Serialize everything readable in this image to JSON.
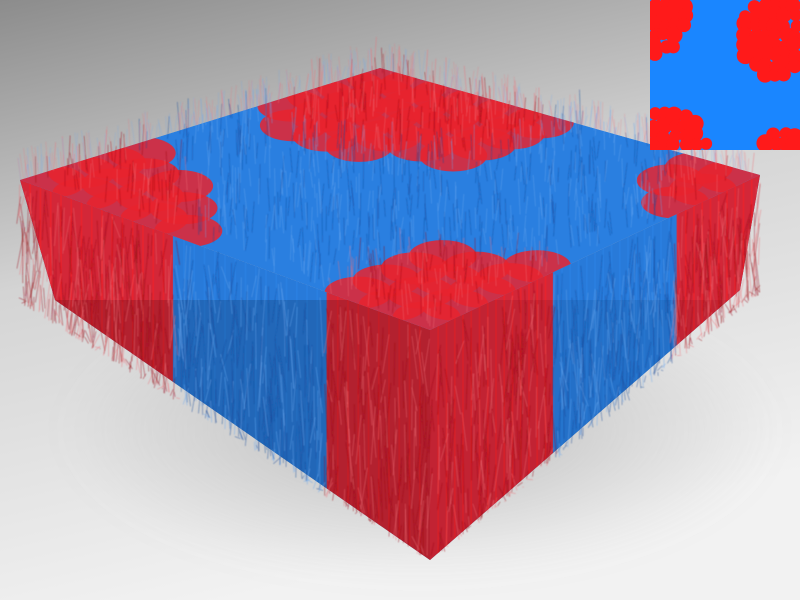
{
  "scene": {
    "background_top": "#8c8c8c",
    "background_mid": "#d4d4d4",
    "background_bottom": "#f2f2f2",
    "floor_shadow": "#9a9a9a"
  },
  "fur": {
    "primary_color": "#e8232e",
    "secondary_color": "#2a7fe0",
    "tip_red": "#f07078",
    "tip_blue": "#6aa8f0",
    "deep_red": "#9a1018",
    "deep_blue": "#1a4a9a"
  },
  "texture_inset": {
    "red": "#ff1a1a",
    "blue": "#1a86ff"
  }
}
